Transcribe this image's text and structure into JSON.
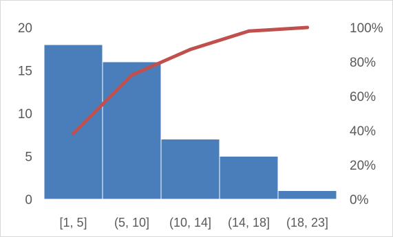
{
  "chart_data": {
    "type": "bar",
    "categories": [
      "[1, 5]",
      "(5, 10]",
      "(10, 14]",
      "(14, 18]",
      "(18, 23]"
    ],
    "series": [
      {
        "type": "bar",
        "values": [
          18,
          16,
          7,
          5,
          1
        ],
        "color": "#4a7ebb"
      },
      {
        "type": "line",
        "axis": "right",
        "values": [
          0.383,
          0.723,
          0.872,
          0.979,
          1.0
        ],
        "color": "#c0504d"
      }
    ],
    "y_left": {
      "min": 0,
      "max": 20,
      "ticks": [
        "0",
        "5",
        "10",
        "15",
        "20"
      ]
    },
    "y_right": {
      "min": 0,
      "max": 1,
      "ticks": [
        "0%",
        "20%",
        "40%",
        "60%",
        "80%",
        "100%"
      ]
    },
    "grid": false,
    "legend": "none"
  }
}
